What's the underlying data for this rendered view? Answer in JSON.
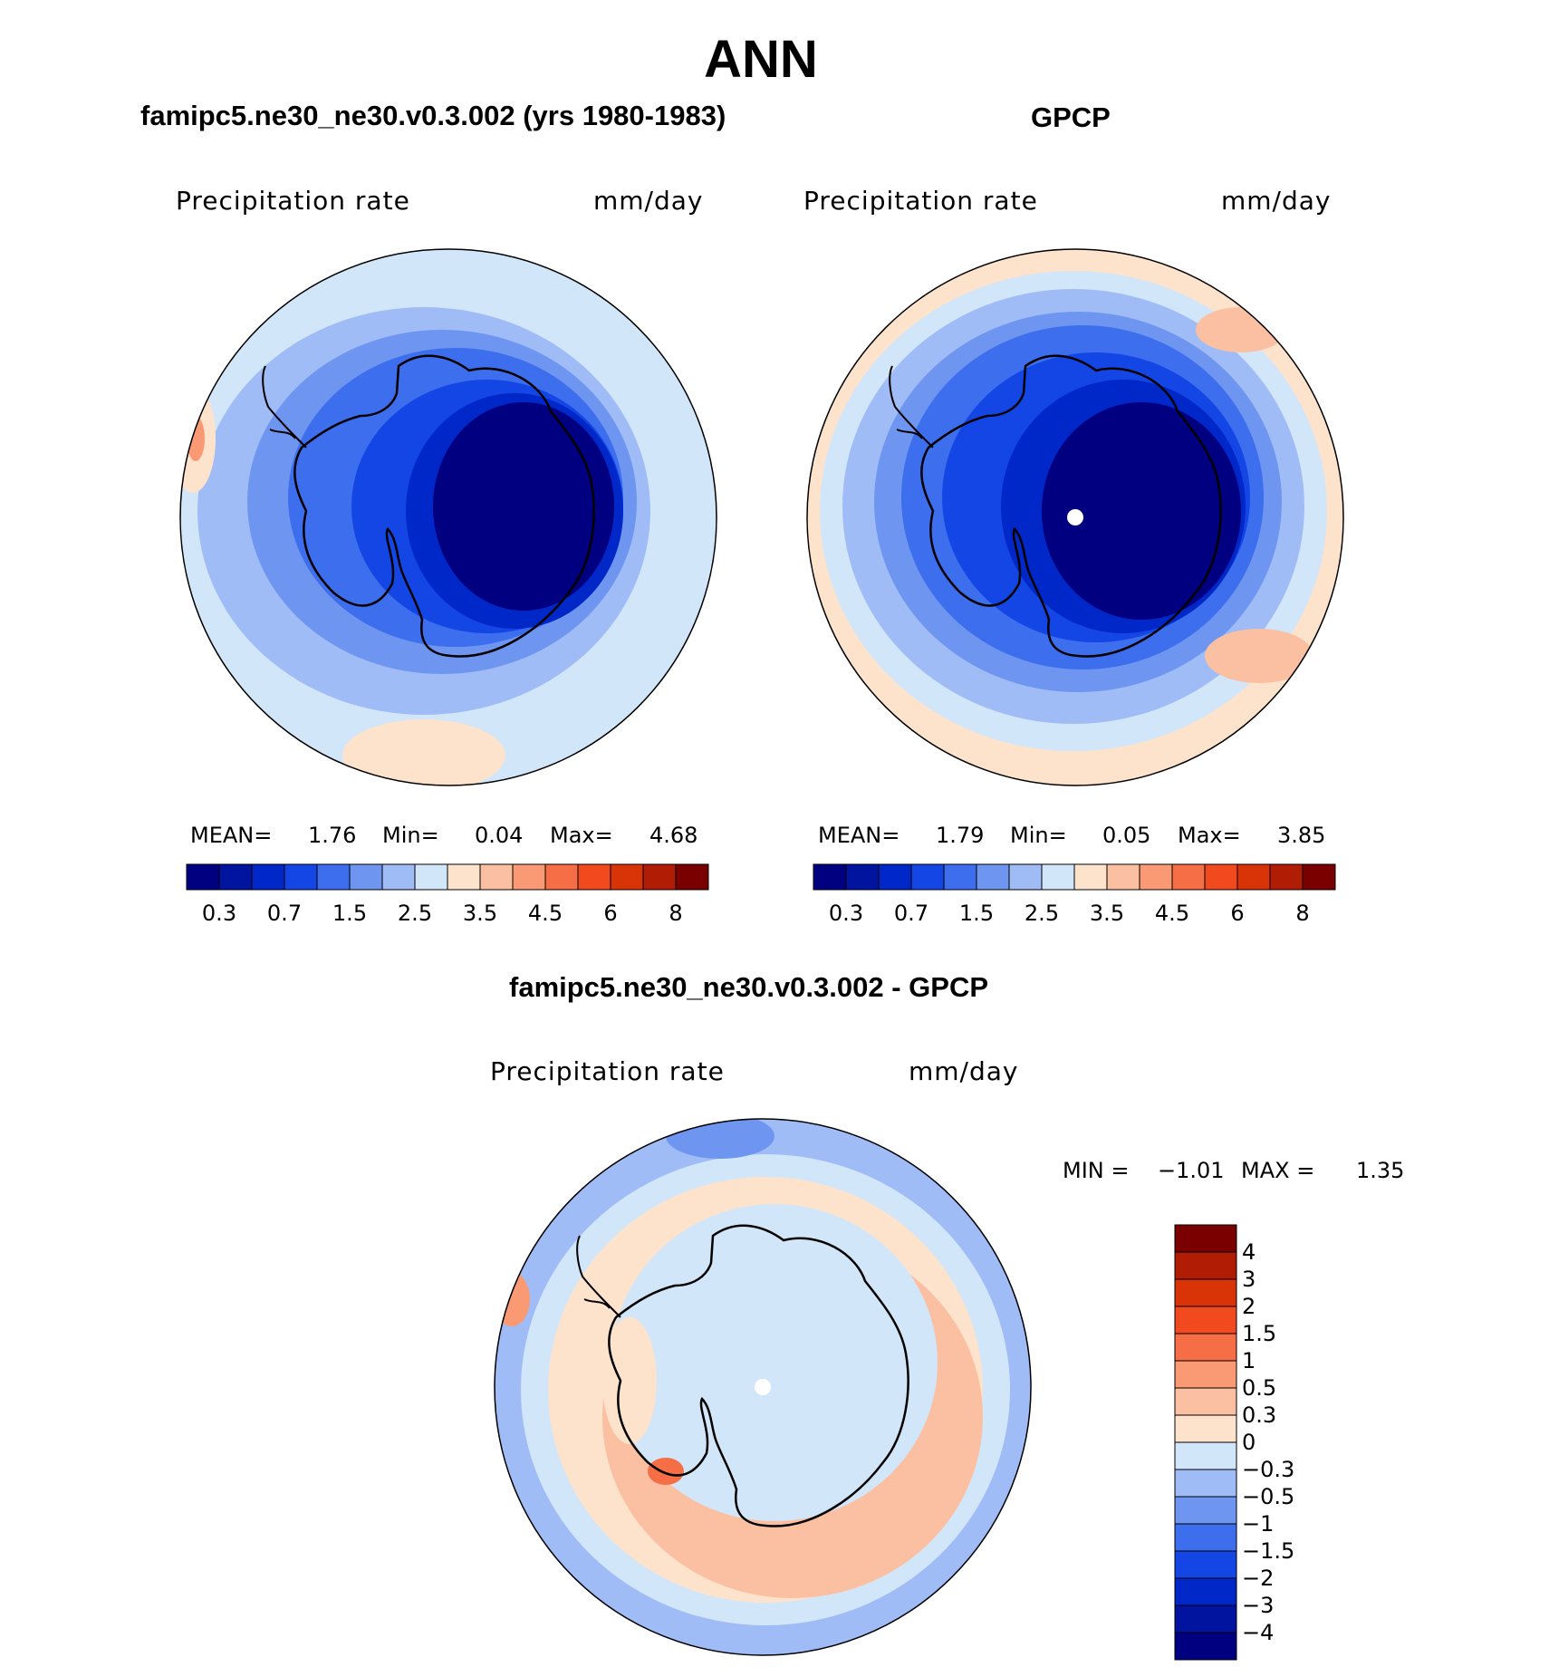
{
  "title": "ANN",
  "panels": [
    {
      "title": "famipc5.ne30_ne30.v0.3.002 (yrs 1980-1983)",
      "variable": "Precipitation  rate",
      "units": "mm/day",
      "stats": {
        "mean_label": "MEAN=",
        "mean": "1.76",
        "min_label": "Min=",
        "min": "0.04",
        "max_label": "Max=",
        "max": "4.68"
      }
    },
    {
      "title": "GPCP",
      "variable": "Precipitation  rate",
      "units": "mm/day",
      "stats": {
        "mean_label": "MEAN=",
        "mean": "1.79",
        "min_label": "Min=",
        "min": "0.05",
        "max_label": "Max=",
        "max": "3.85"
      }
    }
  ],
  "colorbar": {
    "colors": [
      "#000080",
      "#0014a0",
      "#0028c8",
      "#1446e6",
      "#3c6eee",
      "#6e96f0",
      "#a0bcf6",
      "#d2e6fa",
      "#fde2cc",
      "#fbc0a2",
      "#fa9a74",
      "#f66e46",
      "#f04a1e",
      "#d83408",
      "#b01c04",
      "#7a0000"
    ],
    "tick_labels": [
      "0.3",
      "0.7",
      "1.5",
      "2.5",
      "3.5",
      "4.5",
      "6",
      "8"
    ]
  },
  "diff_panel": {
    "title": "famipc5.ne30_ne30.v0.3.002 - GPCP",
    "variable": "Precipitation  rate",
    "units": "mm/day",
    "min_label": "MIN =",
    "min": "−1.01",
    "max_label": "MAX =",
    "max": "1.35",
    "colorbar": {
      "colors": [
        "#7a0000",
        "#b01c04",
        "#d83408",
        "#f04a1e",
        "#f66e46",
        "#fa9a74",
        "#fbc0a2",
        "#fde2cc",
        "#d2e6fa",
        "#a0bcf6",
        "#6e96f0",
        "#3c6eee",
        "#1446e6",
        "#0028c8",
        "#0014a0",
        "#000080"
      ],
      "tick_labels": [
        "4",
        "3",
        "2",
        "1.5",
        "1",
        "0.5",
        "0.3",
        "0",
        "−0.3",
        "−0.5",
        "−1",
        "−1.5",
        "−2",
        "−3",
        "−4"
      ]
    }
  }
}
